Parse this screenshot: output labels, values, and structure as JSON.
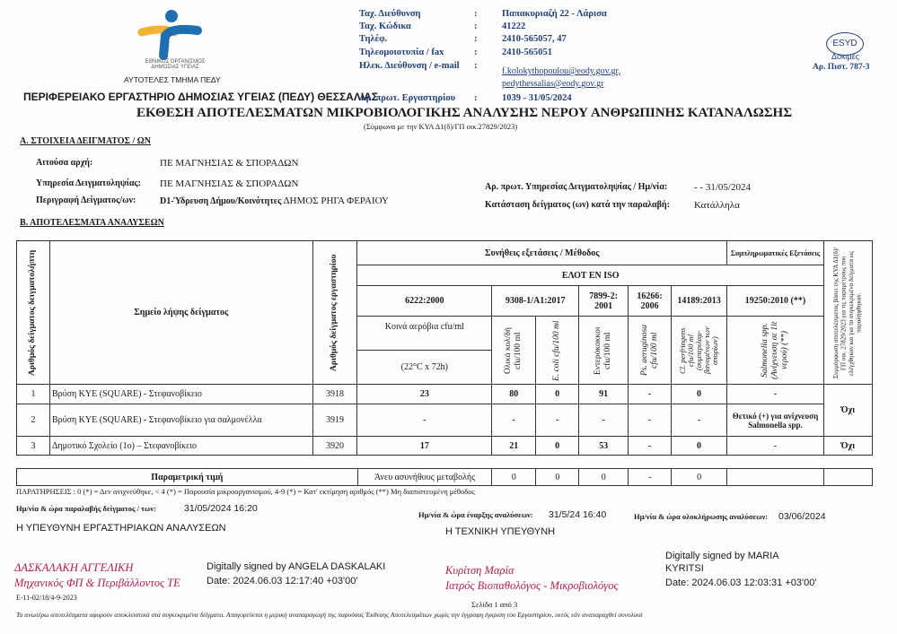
{
  "header": {
    "org_logo_text": [
      "ΕΘΝΙΚΟΣ ΟΡΓΑΝΙΣΜΟΣ",
      "ΔΗΜΟΣΙΑΣ ΥΓΕΙΑΣ"
    ],
    "dept": "ΑΥΤΟΤΕΛΕΣ ΤΜΗΜΑ ΠΕΔΥ",
    "lab": "ΠΕΡΙΦΕΡΕΙΑΚΟ ΕΡΓΑΣΤΗΡΙΟ ΔΗΜΟΣΙΑΣ ΥΓΕΙΑΣ (ΠΕΔΥ) ΘΕΣΣΑΛΙΑΣ",
    "contacts": [
      {
        "label": "Ταχ. Διεύθυνση",
        "value": "Παπακυριαζή 22 - Λάρισα"
      },
      {
        "label": "Ταχ. Κώδικα",
        "value": "41222"
      },
      {
        "label": "Τηλέφ.",
        "value": "2410-565057, 47"
      },
      {
        "label": "Τηλεομοιοτυπία / fax",
        "value": "2410-565051"
      },
      {
        "label": "Ηλεκ. Διεύθυνση / e-mail",
        "value": "f.kolokythopoulou@eody.gov.gr,",
        "value2": "pedythessalias@eody.gov.gr"
      },
      {
        "label": "Αρ. πρωτ. Εργαστηρίου",
        "value": "1039 - 31/05/2024"
      }
    ],
    "sep": ":",
    "esyd_logo": "ESYD",
    "esyd_sub": "Δοκιμές",
    "cert": "Αρ. Πιστ. 787-3",
    "title": "ΕΚΘΕΣΗ ΑΠΟΤΕΛΕΣΜΑΤΩΝ ΜΙΚΡΟΒΙΟΛΟΓΙΚΗΣ ΑΝΑΛΥΣΗΣ ΝΕΡΟΥ ΑΝΘΡΩΠΙΝΗΣ ΚΑΤΑΝΑΛΩΣΗΣ",
    "subtitle": "(Σύμφωνα με την ΚΥΑ Δ1(δ)/ΓΠ οικ.27829/2023)"
  },
  "sectionA": {
    "title": "Α. ΣΤΟΙΧΕΙΑ ΔΕΙΓΜΑΤΟΣ / ΩΝ",
    "requester_label": "Αιτούσα αρχή:",
    "requester": "ΠΕ ΜΑΓΝΗΣΙΑΣ & ΣΠΟΡΑΔΩΝ",
    "service_label": "Υπηρεσία Δειγματοληψίας:",
    "service": "ΠΕ ΜΑΓΝΗΣΙΑΣ & ΣΠΟΡΑΔΩΝ",
    "desc_label": "Περιγραφή Δείγματος/ων:",
    "desc_bold": "D1-Ύδρευση Δήμου/Κοινότητες",
    "desc": "ΔΗΜΟΣ ΡΗΓΑ ΦΕΡΑΙΟΥ",
    "prot_label": "Αρ. πρωτ. Υπηρεσίας Δειγματοληψίας / Ημ/νία:",
    "prot": "- - 31/05/2024",
    "state_label": "Κατάσταση δείγματος (ων) κατά την παραλαβή:",
    "state": "Κατάλληλα"
  },
  "sectionB": {
    "title": "Β. ΑΠΟΤΕΛΕΣΜΑΤΑ ΑΝΑΛΥΣΕΩΝ",
    "h_sample_no": "Αριθμός δείγματος δειγματολήπτη",
    "h_point": "Σημείο λήψης δείγματος",
    "h_lab_no": "Αριθμός δείγματος εργαστηρίου",
    "h_tests": "Συνήθεις εξετάσεις / Μέθοδος",
    "h_extra": "Συμπληρωματικές Εξετάσεις",
    "h_std": "ΕΛΟΤ EN ISO",
    "h_compliance": "Συμμόρφωση αποτελέσματος βάσει της ΚΥΑ Δ1(δ)/ΓΠ οικ. 27829/2023 για τις παραμέτρους που ελέγχθηκαν και για τα συγκεκριμένα δείγματα ως παραλήφθηκαν.",
    "methods": [
      "6222:2000",
      "9308-1/A1:2017",
      "7899-2: 2001",
      "16266: 2006",
      "14189:2013",
      "19250:2010 (**)"
    ],
    "p_aerobic": "Κοινά αερόβια cfu/ml",
    "p_aerobic_cond": "(22°C x 72h)",
    "params": [
      "Ολικά κολ/δή cfu/100 ml",
      "E. coli cfu/100 ml",
      "Εντερόκοκκοι cfu/100 ml",
      "Ps. aeruginosa cfu/100 ml",
      "Cl. perfringens cfu/100 ml (συμπεριλαμ-βανομένων των σπορίων)",
      "Salmonella spp. (Ανίχνευση σε 1lt νερού) (**)"
    ],
    "rows": [
      {
        "no": "1",
        "point": "Βρύση ΚΥΕ (SQUARE) - Στεφανοβίκειο",
        "lab": "3918",
        "vals": [
          "23",
          "80",
          "0",
          "91",
          "-",
          "0",
          "-"
        ],
        "comp": ""
      },
      {
        "no": "2",
        "point": "Βρύση ΚΥΕ (SQUARE) - Στεφανοβίκειο για σαλμονέλλα",
        "lab": "3919",
        "vals": [
          "-",
          "-",
          "-",
          "-",
          "-",
          "-",
          "Θετικό (+) για ανίχνευση Salmonella spp."
        ],
        "comp": "Όχι"
      },
      {
        "no": "3",
        "point": "Δημοτικό Σχολείο (1ο) – Στεφανοβίκειο",
        "lab": "3920",
        "vals": [
          "17",
          "21",
          "0",
          "53",
          "-",
          "0",
          "-"
        ],
        "comp": "Όχι"
      }
    ],
    "param_label": "Παραμετρική τιμή",
    "param_vals": [
      "Άνευ ασυνήθους μεταβολής",
      "0",
      "0",
      "0",
      "-",
      "0",
      "",
      ""
    ]
  },
  "notes": "ΠΑΡΑΤΗΡΗΣΕΙΣ : 0 (*) = Δεν ανιχνεύθηκε, < 4 (*) = Παρουσία μικροοργανισμού, 4-9 (*) = Κατ' εκτίμηση αριθμός (**) Μη διαπιστευμένη μέθοδος",
  "dates": {
    "receipt_label": "Ημ/νία & ώρα παραλαβής δείγματος / των:",
    "receipt": "31/05/2024 16:20",
    "start_label": "Ημ/νία & ώρα έναρξης αναλύσεων:",
    "start": "31/5/24 16:40",
    "end_label": "Ημ/νία & ώρα ολοκλήρωσης αναλύσεων:",
    "end": "03/06/2024"
  },
  "signatures": {
    "left_role": "Η ΥΠΕΥΘΥΝΗ ΕΡΓΑΣΤΗΡΙΑΚΩΝ ΑΝΑΛΥΣΕΩΝ",
    "left_name": "ΔΑΣΚΑΛΑΚΗ ΑΓΓΕΛΙΚΗ",
    "left_title": "Μηχανικός ΦΠ & Περιβάλλοντος ΤΕ",
    "left_digital": "Digitally signed by ANGELA DASKALAKI",
    "left_date": "Date: 2024.06.03 12:17:40 +03'00'",
    "right_role": "Η ΤΕΧΝΙΚΗ ΥΠΕΥΘΥΝΗ",
    "right_name": "Κυρίτση Μαρία",
    "right_title": "Ιατρός Βιοπαθολόγος - Μικροβιολόγος",
    "right_digital1": "Digitally signed by MARIA",
    "right_digital2": "KYRITSI",
    "right_date": "Date: 2024.06.03 12:03:31 +03'00'"
  },
  "footer": {
    "code": "E-11-02/18/4-9-2023",
    "page": "Σελίδα 1 από 3",
    "disclaimer": "Τα ανωτέρω αποτελέσματα αφορούν αποκλειστικά στα συγκεκριμένα δείγματα. Απαγορεύεται η μερική αναπαραγωγή της παρούσας Έκθεσης Αποτελεσμάτων χωρίς την έγγραφη έγκριση του Εργαστηρίου, εκτός εάν αναπαραχθεί συνολικά"
  },
  "colors": {
    "header_blue": "#1f3f7a",
    "logo_blue": "#1f6fb0",
    "logo_yellow": "#f2b233",
    "signature": "#b3204a"
  }
}
